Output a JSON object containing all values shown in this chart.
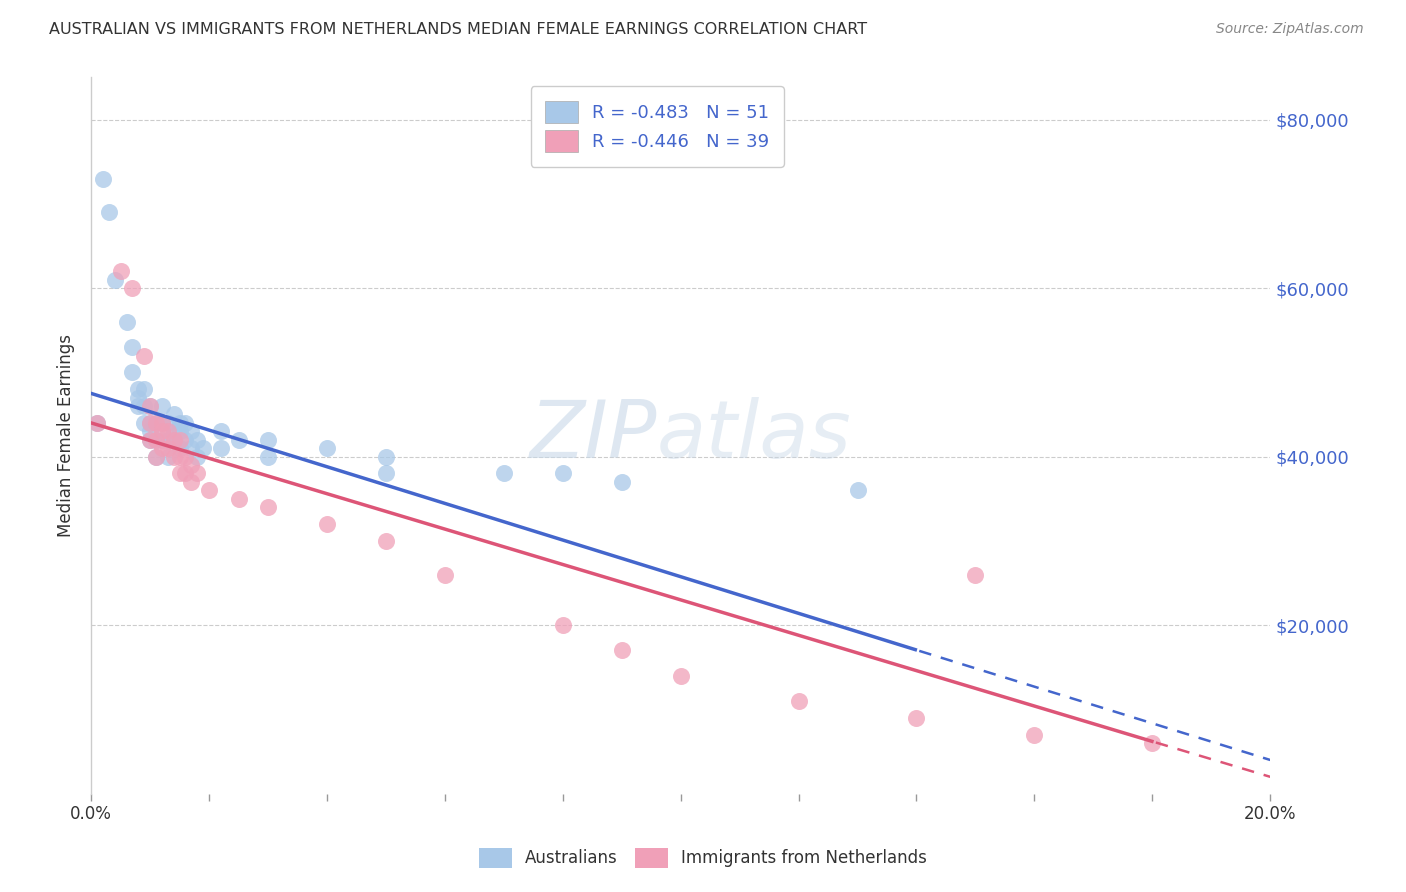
{
  "title": "AUSTRALIAN VS IMMIGRANTS FROM NETHERLANDS MEDIAN FEMALE EARNINGS CORRELATION CHART",
  "source": "Source: ZipAtlas.com",
  "ylabel": "Median Female Earnings",
  "y_ticks": [
    20000,
    40000,
    60000,
    80000
  ],
  "y_tick_labels": [
    "$20,000",
    "$40,000",
    "$60,000",
    "$80,000"
  ],
  "x_range": [
    0.0,
    0.2
  ],
  "y_range": [
    0,
    85000
  ],
  "watermark_zip": "ZIP",
  "watermark_atlas": "atlas",
  "legend_labels": [
    "Australians",
    "Immigrants from Netherlands"
  ],
  "R_aus": -0.483,
  "N_aus": 51,
  "R_neth": -0.446,
  "N_neth": 39,
  "color_aus": "#a8c8e8",
  "color_neth": "#f0a0b8",
  "line_color_aus": "#4466cc",
  "line_color_neth": "#dd5577",
  "line_aus_x0": 0.0,
  "line_aus_y0": 47500,
  "line_aus_x1": 0.2,
  "line_aus_y1": 4000,
  "line_neth_x0": 0.0,
  "line_neth_y0": 44000,
  "line_neth_x1": 0.2,
  "line_neth_y1": 2000,
  "line_aus_solid_end": 0.14,
  "line_neth_solid_end": 0.18,
  "scatter_aus": [
    [
      0.002,
      73000
    ],
    [
      0.003,
      69000
    ],
    [
      0.004,
      61000
    ],
    [
      0.006,
      56000
    ],
    [
      0.007,
      53000
    ],
    [
      0.007,
      50000
    ],
    [
      0.008,
      48000
    ],
    [
      0.008,
      47000
    ],
    [
      0.008,
      46000
    ],
    [
      0.009,
      48000
    ],
    [
      0.009,
      46000
    ],
    [
      0.009,
      44000
    ],
    [
      0.01,
      46000
    ],
    [
      0.01,
      44000
    ],
    [
      0.01,
      43000
    ],
    [
      0.01,
      42000
    ],
    [
      0.011,
      44000
    ],
    [
      0.011,
      42000
    ],
    [
      0.011,
      40000
    ],
    [
      0.012,
      46000
    ],
    [
      0.012,
      44000
    ],
    [
      0.012,
      42000
    ],
    [
      0.013,
      44000
    ],
    [
      0.013,
      42000
    ],
    [
      0.013,
      40000
    ],
    [
      0.014,
      45000
    ],
    [
      0.014,
      43000
    ],
    [
      0.014,
      42000
    ],
    [
      0.015,
      44000
    ],
    [
      0.015,
      43000
    ],
    [
      0.015,
      41000
    ],
    [
      0.016,
      44000
    ],
    [
      0.016,
      42000
    ],
    [
      0.017,
      43000
    ],
    [
      0.017,
      41000
    ],
    [
      0.018,
      42000
    ],
    [
      0.018,
      40000
    ],
    [
      0.019,
      41000
    ],
    [
      0.022,
      43000
    ],
    [
      0.022,
      41000
    ],
    [
      0.025,
      42000
    ],
    [
      0.03,
      42000
    ],
    [
      0.03,
      40000
    ],
    [
      0.04,
      41000
    ],
    [
      0.05,
      40000
    ],
    [
      0.05,
      38000
    ],
    [
      0.07,
      38000
    ],
    [
      0.08,
      38000
    ],
    [
      0.09,
      37000
    ],
    [
      0.13,
      36000
    ],
    [
      0.001,
      44000
    ]
  ],
  "scatter_neth": [
    [
      0.001,
      44000
    ],
    [
      0.005,
      62000
    ],
    [
      0.007,
      60000
    ],
    [
      0.009,
      52000
    ],
    [
      0.01,
      46000
    ],
    [
      0.01,
      44000
    ],
    [
      0.01,
      42000
    ],
    [
      0.011,
      44000
    ],
    [
      0.011,
      42000
    ],
    [
      0.011,
      40000
    ],
    [
      0.012,
      44000
    ],
    [
      0.012,
      43000
    ],
    [
      0.012,
      41000
    ],
    [
      0.013,
      43000
    ],
    [
      0.013,
      41000
    ],
    [
      0.014,
      42000
    ],
    [
      0.014,
      40000
    ],
    [
      0.015,
      42000
    ],
    [
      0.015,
      40000
    ],
    [
      0.015,
      38000
    ],
    [
      0.016,
      40000
    ],
    [
      0.016,
      38000
    ],
    [
      0.017,
      39000
    ],
    [
      0.017,
      37000
    ],
    [
      0.018,
      38000
    ],
    [
      0.02,
      36000
    ],
    [
      0.025,
      35000
    ],
    [
      0.03,
      34000
    ],
    [
      0.04,
      32000
    ],
    [
      0.05,
      30000
    ],
    [
      0.06,
      26000
    ],
    [
      0.08,
      20000
    ],
    [
      0.09,
      17000
    ],
    [
      0.1,
      14000
    ],
    [
      0.12,
      11000
    ],
    [
      0.14,
      9000
    ],
    [
      0.15,
      26000
    ],
    [
      0.16,
      7000
    ],
    [
      0.18,
      6000
    ]
  ]
}
